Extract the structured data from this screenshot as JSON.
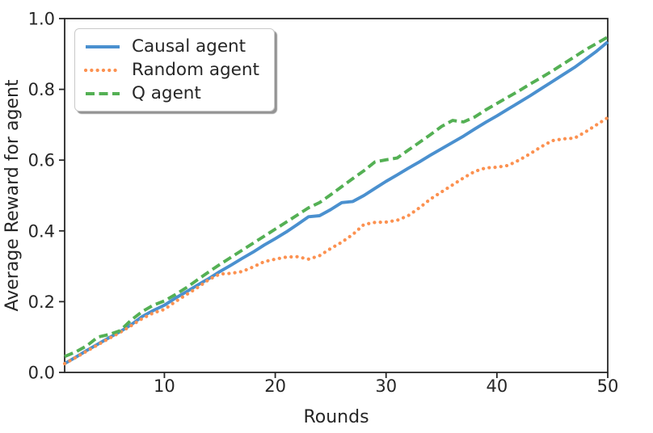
{
  "figure": {
    "background": "#ffffff",
    "axis_color": "#262626"
  },
  "chart_data": {
    "type": "line",
    "xlabel": "Rounds",
    "ylabel": "Average Reward for agent",
    "xlim": [
      1,
      50
    ],
    "ylim": [
      0.0,
      1.0
    ],
    "xticks": [
      10,
      20,
      30,
      40,
      50
    ],
    "yticks": [
      "0.0",
      "0.2",
      "0.4",
      "0.6",
      "0.8",
      "1.0"
    ],
    "grid": false,
    "legend_position": "upper-left",
    "axis_color": "#262626",
    "x": [
      1,
      2,
      3,
      4,
      5,
      6,
      7,
      8,
      9,
      10,
      11,
      12,
      13,
      14,
      15,
      16,
      17,
      18,
      19,
      20,
      21,
      22,
      23,
      24,
      25,
      26,
      27,
      28,
      29,
      30,
      31,
      32,
      33,
      34,
      35,
      36,
      37,
      38,
      39,
      40,
      41,
      42,
      43,
      44,
      45,
      46,
      47,
      48,
      49,
      50
    ],
    "series": [
      {
        "name": "Causal agent",
        "color": "#4a90cf",
        "style": "solid",
        "values": [
          0.025,
          0.043,
          0.062,
          0.08,
          0.098,
          0.115,
          0.135,
          0.158,
          0.175,
          0.19,
          0.21,
          0.228,
          0.247,
          0.265,
          0.285,
          0.303,
          0.322,
          0.34,
          0.36,
          0.378,
          0.397,
          0.418,
          0.44,
          0.443,
          0.46,
          0.48,
          0.483,
          0.5,
          0.52,
          0.54,
          0.558,
          0.577,
          0.595,
          0.614,
          0.632,
          0.65,
          0.668,
          0.688,
          0.707,
          0.725,
          0.744,
          0.763,
          0.782,
          0.802,
          0.822,
          0.842,
          0.862,
          0.885,
          0.908,
          0.934
        ]
      },
      {
        "name": "Random agent",
        "color": "#fc9150",
        "style": "dotted",
        "values": [
          0.025,
          0.042,
          0.06,
          0.078,
          0.096,
          0.113,
          0.132,
          0.152,
          0.168,
          0.178,
          0.2,
          0.22,
          0.24,
          0.262,
          0.278,
          0.28,
          0.285,
          0.298,
          0.313,
          0.32,
          0.326,
          0.327,
          0.32,
          0.33,
          0.35,
          0.368,
          0.39,
          0.418,
          0.424,
          0.425,
          0.43,
          0.443,
          0.465,
          0.49,
          0.51,
          0.53,
          0.55,
          0.568,
          0.578,
          0.58,
          0.585,
          0.6,
          0.618,
          0.638,
          0.655,
          0.66,
          0.662,
          0.68,
          0.7,
          0.72
        ]
      },
      {
        "name": "Q agent",
        "color": "#54b054",
        "style": "dashed",
        "values": [
          0.045,
          0.058,
          0.075,
          0.1,
          0.107,
          0.118,
          0.148,
          0.172,
          0.19,
          0.202,
          0.22,
          0.24,
          0.262,
          0.284,
          0.305,
          0.325,
          0.345,
          0.365,
          0.385,
          0.405,
          0.425,
          0.445,
          0.465,
          0.48,
          0.502,
          0.525,
          0.548,
          0.57,
          0.595,
          0.601,
          0.606,
          0.628,
          0.65,
          0.672,
          0.695,
          0.712,
          0.708,
          0.722,
          0.742,
          0.76,
          0.778,
          0.796,
          0.815,
          0.833,
          0.852,
          0.872,
          0.892,
          0.912,
          0.93,
          0.948
        ]
      }
    ]
  }
}
